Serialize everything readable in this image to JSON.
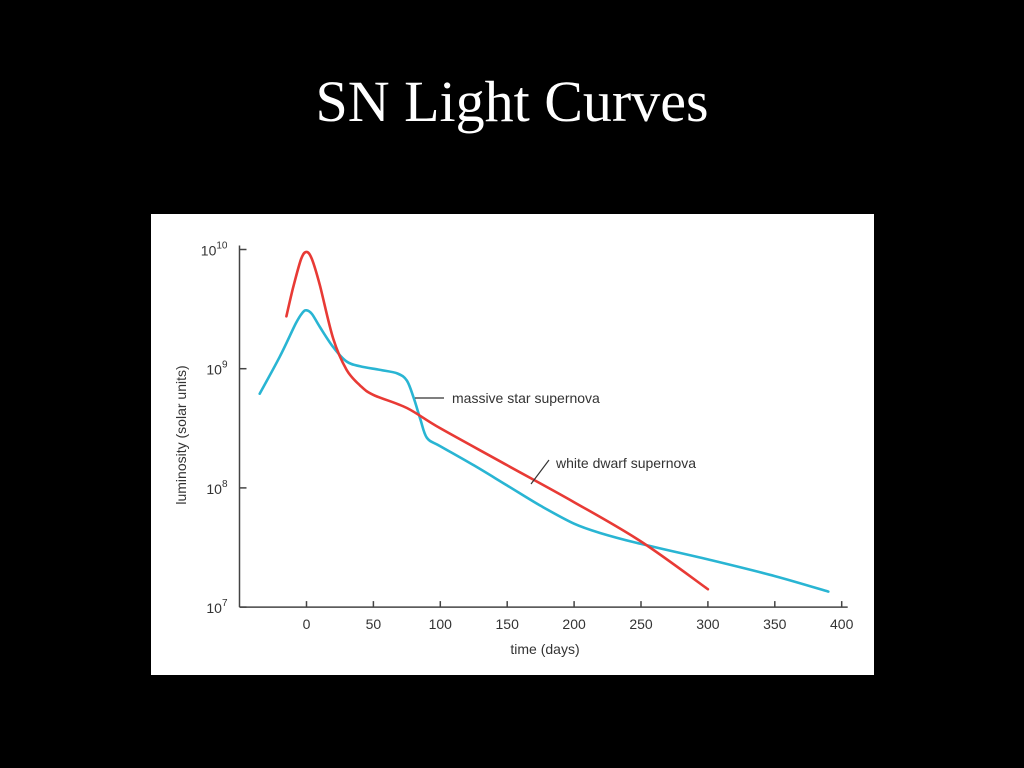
{
  "slide": {
    "title": "SN Light Curves"
  },
  "chart_data": {
    "type": "line",
    "title": "",
    "xlabel": "time (days)",
    "ylabel": "luminosity (solar units)",
    "xlim": [
      -40,
      400
    ],
    "ylim_log10": [
      7,
      10
    ],
    "y_scale": "log",
    "x_ticks": [
      0,
      50,
      100,
      150,
      200,
      250,
      300,
      350,
      400
    ],
    "y_ticks": [
      {
        "exp": 10,
        "base": "10",
        "sup": "10"
      },
      {
        "exp": 9,
        "base": "10",
        "sup": "9"
      },
      {
        "exp": 8,
        "base": "10",
        "sup": "8"
      },
      {
        "exp": 7,
        "base": "10",
        "sup": "7"
      }
    ],
    "grid": false,
    "legend": "none",
    "series": [
      {
        "name": "massive star supernova",
        "color": "#29b5d3",
        "points": [
          [
            -35,
            8.79
          ],
          [
            -20,
            9.1
          ],
          [
            -8,
            9.38
          ],
          [
            -3,
            9.47
          ],
          [
            0,
            9.49
          ],
          [
            4,
            9.46
          ],
          [
            10,
            9.35
          ],
          [
            20,
            9.18
          ],
          [
            30,
            9.06
          ],
          [
            40,
            9.02
          ],
          [
            55,
            8.99
          ],
          [
            68,
            8.96
          ],
          [
            75,
            8.9
          ],
          [
            80,
            8.76
          ],
          [
            85,
            8.58
          ],
          [
            90,
            8.42
          ],
          [
            100,
            8.35
          ],
          [
            125,
            8.19
          ],
          [
            150,
            8.02
          ],
          [
            175,
            7.85
          ],
          [
            200,
            7.7
          ],
          [
            220,
            7.62
          ],
          [
            250,
            7.53
          ],
          [
            300,
            7.4
          ],
          [
            350,
            7.26
          ],
          [
            390,
            7.13
          ]
        ]
      },
      {
        "name": "white dwarf supernova",
        "color": "#e83a35",
        "points": [
          [
            -15,
            9.44
          ],
          [
            -10,
            9.68
          ],
          [
            -4,
            9.92
          ],
          [
            0,
            9.98
          ],
          [
            4,
            9.92
          ],
          [
            10,
            9.7
          ],
          [
            20,
            9.25
          ],
          [
            30,
            8.99
          ],
          [
            40,
            8.86
          ],
          [
            50,
            8.78
          ],
          [
            75,
            8.67
          ],
          [
            100,
            8.5
          ],
          [
            150,
            8.19
          ],
          [
            200,
            7.88
          ],
          [
            250,
            7.55
          ],
          [
            300,
            7.15
          ]
        ]
      }
    ],
    "annotations": [
      {
        "text": "massive star supernova",
        "series": "massive star supernova"
      },
      {
        "text": "white dwarf supernova",
        "series": "white dwarf supernova"
      }
    ]
  }
}
